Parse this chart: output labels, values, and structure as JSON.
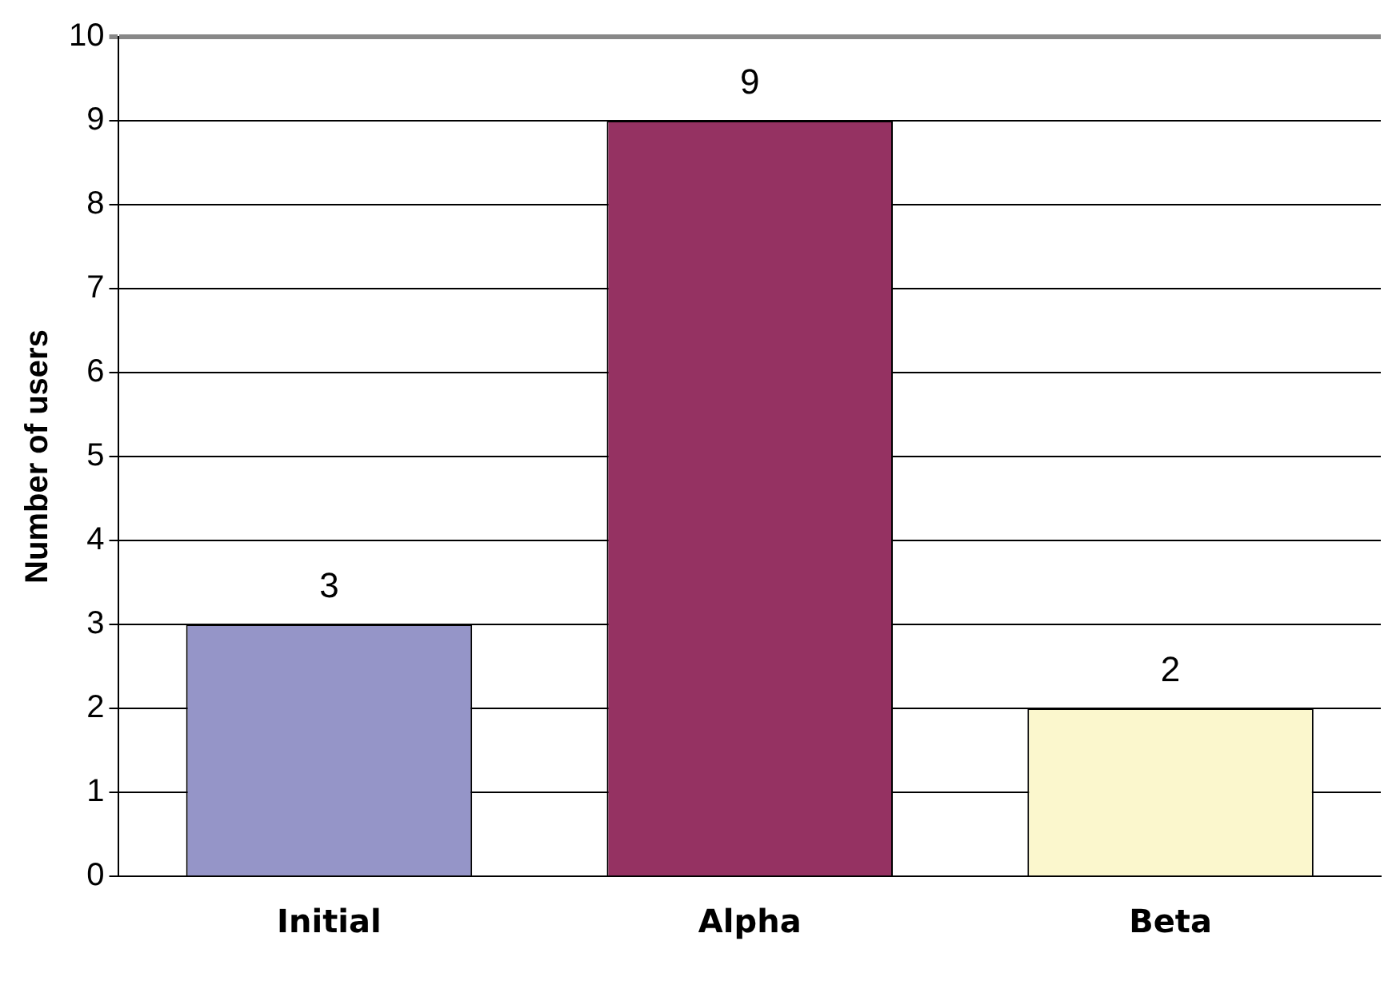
{
  "chart_data": {
    "type": "bar",
    "ylabel": "Number of users",
    "categories": [
      "Initial",
      "Alpha",
      "Beta"
    ],
    "values": [
      3,
      9,
      2
    ],
    "colors": [
      "#9595c8",
      "#953262",
      "#fbf7cd"
    ],
    "ylim": [
      0,
      10
    ],
    "yticks": [
      0,
      1,
      2,
      3,
      4,
      5,
      6,
      7,
      8,
      9,
      10
    ],
    "grid": "y",
    "data_labels": true,
    "legend": false
  }
}
